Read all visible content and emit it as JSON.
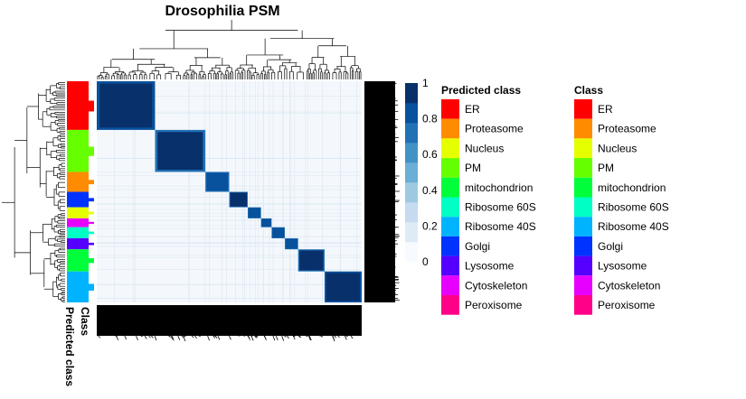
{
  "chart_data": {
    "type": "heatmap",
    "title": "Drosophilia PSM",
    "colorbar": {
      "min": 0,
      "max": 1,
      "ticks": [
        0,
        0.2,
        0.4,
        0.6,
        0.8,
        1
      ],
      "tick_labels": [
        "0",
        "0.2",
        "0.4",
        "0.6",
        "0.8",
        "1"
      ],
      "colors": [
        "#f7fbff",
        "#deebf7",
        "#c6dbef",
        "#9ecae1",
        "#6baed6",
        "#4292c6",
        "#2171b5",
        "#08519c",
        "#08306b"
      ]
    },
    "legends": [
      {
        "title": "Predicted class",
        "entries": [
          {
            "label": "ER",
            "color": "#ff0000"
          },
          {
            "label": "Proteasome",
            "color": "#ff8c00"
          },
          {
            "label": "Nucleus",
            "color": "#e6ff00"
          },
          {
            "label": "PM",
            "color": "#66ff00"
          },
          {
            "label": "mitochondrion",
            "color": "#00ff3a"
          },
          {
            "label": "Ribosome 60S",
            "color": "#00ffc4"
          },
          {
            "label": "Ribosome 40S",
            "color": "#00b3ff"
          },
          {
            "label": "Golgi",
            "color": "#0033ff"
          },
          {
            "label": "Lysosome",
            "color": "#5500ff"
          },
          {
            "label": "Cytoskeleton",
            "color": "#e600ff"
          },
          {
            "label": "Peroxisome",
            "color": "#ff0088"
          }
        ]
      },
      {
        "title": "Class",
        "entries": [
          {
            "label": "ER",
            "color": "#ff0000"
          },
          {
            "label": "Proteasome",
            "color": "#ff8c00"
          },
          {
            "label": "Nucleus",
            "color": "#e6ff00"
          },
          {
            "label": "PM",
            "color": "#66ff00"
          },
          {
            "label": "mitochondrion",
            "color": "#00ff3a"
          },
          {
            "label": "Ribosome 60S",
            "color": "#00ffc4"
          },
          {
            "label": "Ribosome 40S",
            "color": "#00b3ff"
          },
          {
            "label": "Golgi",
            "color": "#0033ff"
          },
          {
            "label": "Lysosome",
            "color": "#5500ff"
          },
          {
            "label": "Cytoskeleton",
            "color": "#e600ff"
          },
          {
            "label": "Peroxisome",
            "color": "#ff0088"
          }
        ]
      }
    ],
    "row_annotations": {
      "labels": [
        "Predicted class",
        "Class"
      ],
      "predicted_class_order": [
        "ER",
        "PM",
        "Proteasome",
        "Golgi",
        "Nucleus",
        "Cytoskeleton",
        "Ribosome 60S",
        "Lysosome",
        "mitochondrion",
        "Ribosome 40S"
      ]
    },
    "clusters": [
      {
        "predicted_class": "ER",
        "fraction": 0.22,
        "similarity": 1.0
      },
      {
        "predicted_class": "PM",
        "fraction": 0.19,
        "similarity": 0.95
      },
      {
        "predicted_class": "Proteasome",
        "fraction": 0.09,
        "similarity": 0.92
      },
      {
        "predicted_class": "Golgi",
        "fraction": 0.07,
        "similarity": 0.95
      },
      {
        "predicted_class": "Nucleus",
        "fraction": 0.05,
        "similarity": 0.9
      },
      {
        "predicted_class": "Cytoskeleton",
        "fraction": 0.04,
        "similarity": 0.9
      },
      {
        "predicted_class": "Ribosome 60S",
        "fraction": 0.05,
        "similarity": 0.9
      },
      {
        "predicted_class": "Lysosome",
        "fraction": 0.05,
        "similarity": 0.88
      },
      {
        "predicted_class": "mitochondrion",
        "fraction": 0.1,
        "similarity": 0.95
      },
      {
        "predicted_class": "Ribosome 40S",
        "fraction": 0.14,
        "similarity": 0.97
      }
    ]
  }
}
